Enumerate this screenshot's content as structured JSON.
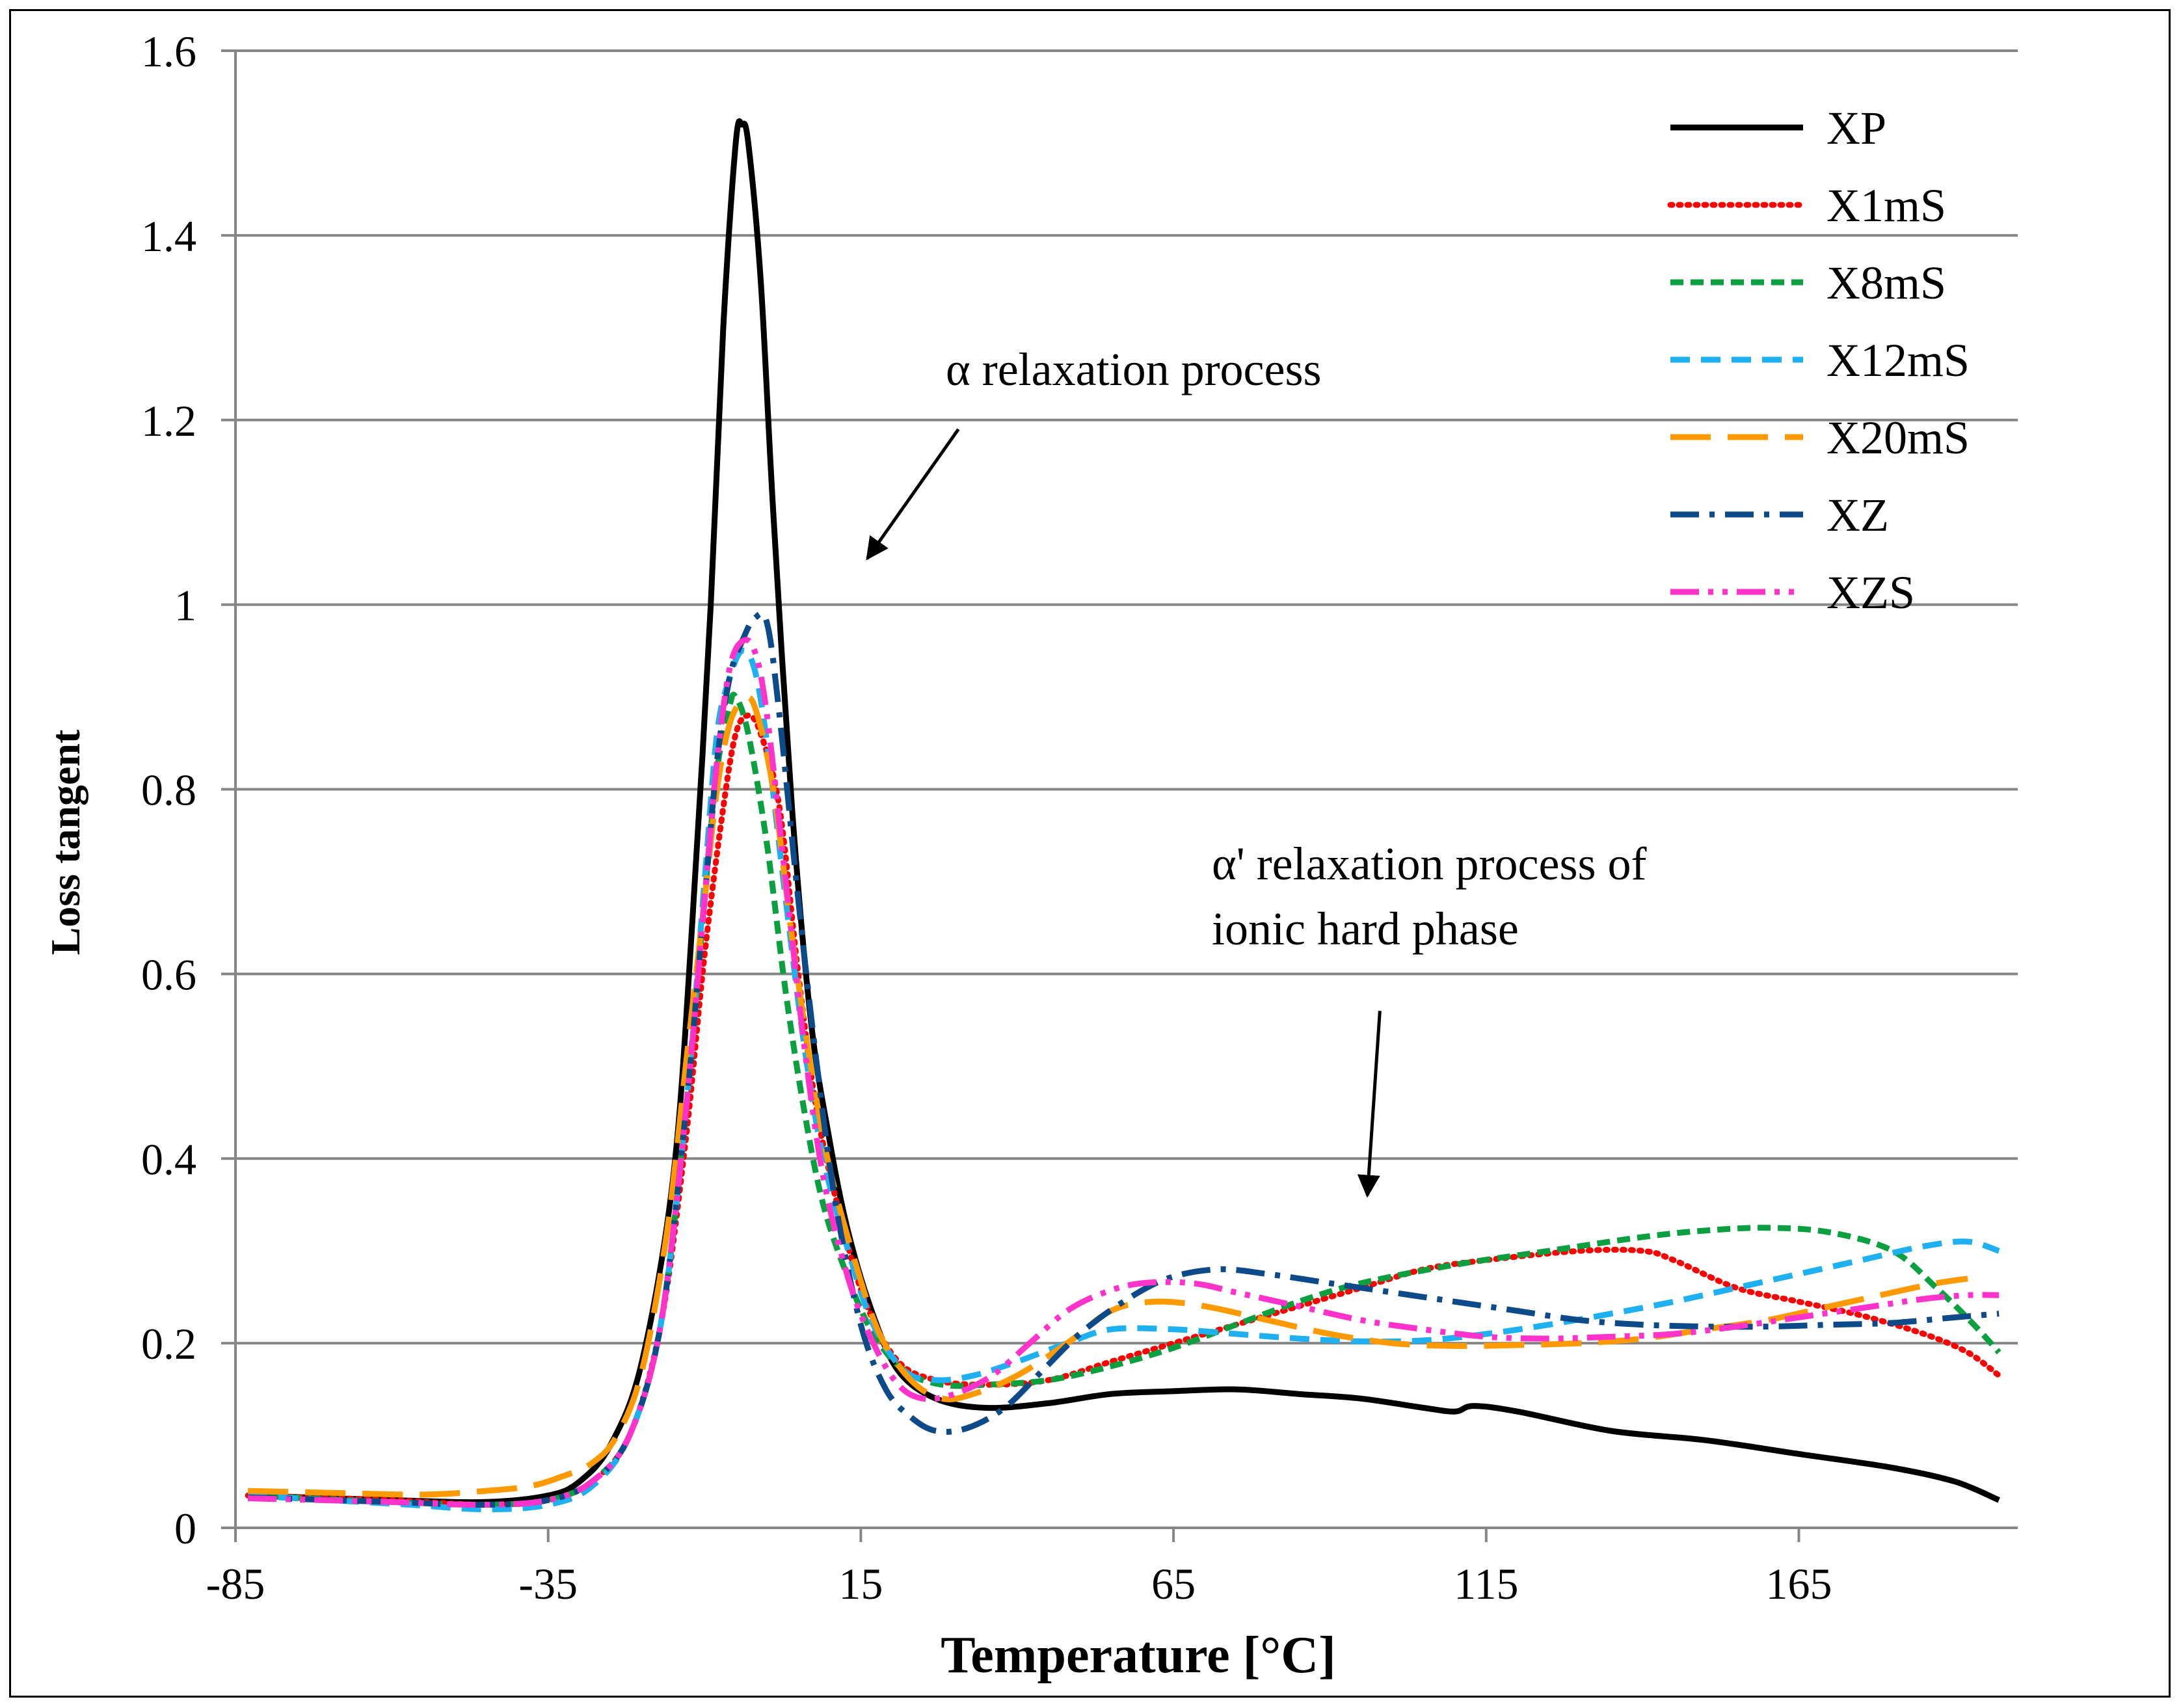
{
  "chart_data": {
    "type": "line",
    "title": "",
    "xlabel": "Temperature [°C]",
    "ylabel": "Loss tangent",
    "xlim": [
      -85,
      200
    ],
    "ylim": [
      0,
      1.6
    ],
    "xticks": [
      -85,
      -35,
      15,
      65,
      115,
      165
    ],
    "xtick_labels": [
      "-85",
      "-35",
      "15",
      "65",
      "115",
      "165"
    ],
    "yticks": [
      0,
      0.2,
      0.4,
      0.6,
      0.8,
      1.0,
      1.2,
      1.4,
      1.6
    ],
    "ytick_labels": [
      "0",
      "0.2",
      "0.4",
      "0.6",
      "0.8",
      "1",
      "1.2",
      "1.4",
      "1.6"
    ],
    "grid": "horizontal",
    "legend_position": "top-right",
    "annotations": [
      {
        "text": "α relaxation process",
        "arrow_from": [
          15,
          1.19
        ],
        "arrow_to": [
          15,
          1.05
        ]
      },
      {
        "text_lines": [
          "α' relaxation process of",
          "ionic hard phase"
        ],
        "arrow_from": [
          98,
          0.56
        ],
        "arrow_to": [
          96,
          0.36
        ]
      }
    ],
    "series": [
      {
        "name": "XP",
        "color": "#000000",
        "dash": "solid",
        "points": [
          [
            -83,
            0.035
          ],
          [
            -60,
            0.03
          ],
          [
            -45,
            0.028
          ],
          [
            -35,
            0.035
          ],
          [
            -30,
            0.05
          ],
          [
            -25,
            0.09
          ],
          [
            -20,
            0.18
          ],
          [
            -15,
            0.38
          ],
          [
            -12,
            0.65
          ],
          [
            -9,
            1.0
          ],
          [
            -7,
            1.3
          ],
          [
            -5,
            1.5
          ],
          [
            -4,
            1.52
          ],
          [
            -3,
            1.5
          ],
          [
            -1,
            1.35
          ],
          [
            1,
            1.1
          ],
          [
            4,
            0.78
          ],
          [
            7,
            0.55
          ],
          [
            10,
            0.42
          ],
          [
            13,
            0.32
          ],
          [
            17,
            0.23
          ],
          [
            21,
            0.17
          ],
          [
            27,
            0.14
          ],
          [
            35,
            0.13
          ],
          [
            45,
            0.135
          ],
          [
            55,
            0.145
          ],
          [
            65,
            0.148
          ],
          [
            75,
            0.15
          ],
          [
            85,
            0.145
          ],
          [
            95,
            0.14
          ],
          [
            105,
            0.13
          ],
          [
            110,
            0.126
          ],
          [
            113,
            0.132
          ],
          [
            120,
            0.126
          ],
          [
            135,
            0.105
          ],
          [
            150,
            0.095
          ],
          [
            165,
            0.08
          ],
          [
            180,
            0.065
          ],
          [
            190,
            0.05
          ],
          [
            197,
            0.03
          ]
        ]
      },
      {
        "name": "X1mS",
        "color": "#ff0000",
        "dash": "dotted",
        "points": [
          [
            -83,
            0.035
          ],
          [
            -60,
            0.03
          ],
          [
            -45,
            0.025
          ],
          [
            -35,
            0.03
          ],
          [
            -28,
            0.05
          ],
          [
            -22,
            0.1
          ],
          [
            -17,
            0.22
          ],
          [
            -13,
            0.42
          ],
          [
            -10,
            0.62
          ],
          [
            -7,
            0.78
          ],
          [
            -5,
            0.86
          ],
          [
            -3,
            0.88
          ],
          [
            -1,
            0.86
          ],
          [
            2,
            0.78
          ],
          [
            5,
            0.6
          ],
          [
            8,
            0.45
          ],
          [
            12,
            0.33
          ],
          [
            16,
            0.24
          ],
          [
            21,
            0.18
          ],
          [
            27,
            0.16
          ],
          [
            35,
            0.155
          ],
          [
            45,
            0.16
          ],
          [
            55,
            0.18
          ],
          [
            65,
            0.2
          ],
          [
            75,
            0.22
          ],
          [
            85,
            0.24
          ],
          [
            95,
            0.26
          ],
          [
            105,
            0.28
          ],
          [
            115,
            0.29
          ],
          [
            130,
            0.3
          ],
          [
            140,
            0.3
          ],
          [
            145,
            0.29
          ],
          [
            155,
            0.26
          ],
          [
            165,
            0.245
          ],
          [
            175,
            0.23
          ],
          [
            185,
            0.21
          ],
          [
            192,
            0.19
          ],
          [
            197,
            0.165
          ]
        ]
      },
      {
        "name": "X8mS",
        "color": "#0aa040",
        "dash": "short-dash",
        "points": [
          [
            -83,
            0.035
          ],
          [
            -60,
            0.028
          ],
          [
            -45,
            0.025
          ],
          [
            -35,
            0.03
          ],
          [
            -28,
            0.05
          ],
          [
            -22,
            0.1
          ],
          [
            -17,
            0.22
          ],
          [
            -13,
            0.45
          ],
          [
            -10,
            0.68
          ],
          [
            -8,
            0.82
          ],
          [
            -6,
            0.89
          ],
          [
            -5,
            0.9
          ],
          [
            -3,
            0.86
          ],
          [
            0,
            0.74
          ],
          [
            3,
            0.58
          ],
          [
            6,
            0.45
          ],
          [
            9,
            0.35
          ],
          [
            13,
            0.27
          ],
          [
            17,
            0.21
          ],
          [
            22,
            0.17
          ],
          [
            28,
            0.155
          ],
          [
            35,
            0.155
          ],
          [
            45,
            0.16
          ],
          [
            55,
            0.175
          ],
          [
            65,
            0.195
          ],
          [
            75,
            0.22
          ],
          [
            85,
            0.245
          ],
          [
            95,
            0.265
          ],
          [
            110,
            0.285
          ],
          [
            125,
            0.3
          ],
          [
            140,
            0.315
          ],
          [
            150,
            0.322
          ],
          [
            160,
            0.325
          ],
          [
            170,
            0.32
          ],
          [
            180,
            0.3
          ],
          [
            187,
            0.26
          ],
          [
            193,
            0.22
          ],
          [
            197,
            0.19
          ]
        ]
      },
      {
        "name": "X12mS",
        "color": "#1eb0f0",
        "dash": "dash",
        "points": [
          [
            -83,
            0.035
          ],
          [
            -70,
            0.03
          ],
          [
            -57,
            0.025
          ],
          [
            -45,
            0.02
          ],
          [
            -35,
            0.025
          ],
          [
            -28,
            0.045
          ],
          [
            -22,
            0.1
          ],
          [
            -17,
            0.22
          ],
          [
            -13,
            0.45
          ],
          [
            -10,
            0.7
          ],
          [
            -8,
            0.86
          ],
          [
            -6,
            0.92
          ],
          [
            -4,
            0.95
          ],
          [
            -2,
            0.93
          ],
          [
            0,
            0.85
          ],
          [
            3,
            0.68
          ],
          [
            6,
            0.52
          ],
          [
            9,
            0.4
          ],
          [
            13,
            0.3
          ],
          [
            17,
            0.22
          ],
          [
            22,
            0.17
          ],
          [
            27,
            0.16
          ],
          [
            33,
            0.165
          ],
          [
            40,
            0.18
          ],
          [
            48,
            0.2
          ],
          [
            55,
            0.215
          ],
          [
            65,
            0.215
          ],
          [
            75,
            0.21
          ],
          [
            85,
            0.205
          ],
          [
            95,
            0.202
          ],
          [
            105,
            0.203
          ],
          [
            115,
            0.21
          ],
          [
            125,
            0.22
          ],
          [
            135,
            0.232
          ],
          [
            145,
            0.245
          ],
          [
            155,
            0.26
          ],
          [
            165,
            0.275
          ],
          [
            175,
            0.29
          ],
          [
            185,
            0.305
          ],
          [
            192,
            0.31
          ],
          [
            197,
            0.3
          ]
        ]
      },
      {
        "name": "X20mS",
        "color": "#ff9900",
        "dash": "long-dash",
        "points": [
          [
            -83,
            0.04
          ],
          [
            -70,
            0.038
          ],
          [
            -55,
            0.036
          ],
          [
            -45,
            0.04
          ],
          [
            -38,
            0.045
          ],
          [
            -33,
            0.055
          ],
          [
            -28,
            0.07
          ],
          [
            -24,
            0.1
          ],
          [
            -20,
            0.17
          ],
          [
            -16,
            0.32
          ],
          [
            -13,
            0.5
          ],
          [
            -10,
            0.68
          ],
          [
            -8,
            0.8
          ],
          [
            -6,
            0.87
          ],
          [
            -4,
            0.895
          ],
          [
            -2,
            0.89
          ],
          [
            1,
            0.8
          ],
          [
            4,
            0.64
          ],
          [
            7,
            0.5
          ],
          [
            10,
            0.39
          ],
          [
            14,
            0.29
          ],
          [
            18,
            0.21
          ],
          [
            23,
            0.16
          ],
          [
            28,
            0.14
          ],
          [
            33,
            0.145
          ],
          [
            40,
            0.165
          ],
          [
            48,
            0.2
          ],
          [
            55,
            0.235
          ],
          [
            62,
            0.245
          ],
          [
            70,
            0.24
          ],
          [
            80,
            0.225
          ],
          [
            90,
            0.21
          ],
          [
            100,
            0.2
          ],
          [
            110,
            0.197
          ],
          [
            120,
            0.198
          ],
          [
            130,
            0.2
          ],
          [
            140,
            0.205
          ],
          [
            150,
            0.215
          ],
          [
            160,
            0.225
          ],
          [
            170,
            0.24
          ],
          [
            180,
            0.255
          ],
          [
            187,
            0.265
          ],
          [
            192,
            0.27
          ]
        ]
      },
      {
        "name": "XZ",
        "color": "#0c4a8a",
        "dash": "dash-dot",
        "points": [
          [
            -83,
            0.033
          ],
          [
            -60,
            0.028
          ],
          [
            -45,
            0.025
          ],
          [
            -35,
            0.03
          ],
          [
            -28,
            0.05
          ],
          [
            -22,
            0.1
          ],
          [
            -17,
            0.22
          ],
          [
            -13,
            0.45
          ],
          [
            -10,
            0.68
          ],
          [
            -8,
            0.83
          ],
          [
            -6,
            0.92
          ],
          [
            -4,
            0.96
          ],
          [
            -2,
            0.985
          ],
          [
            0,
            0.98
          ],
          [
            2,
            0.88
          ],
          [
            5,
            0.68
          ],
          [
            8,
            0.5
          ],
          [
            11,
            0.35
          ],
          [
            15,
            0.22
          ],
          [
            19,
            0.15
          ],
          [
            23,
            0.12
          ],
          [
            27,
            0.105
          ],
          [
            32,
            0.108
          ],
          [
            38,
            0.13
          ],
          [
            44,
            0.17
          ],
          [
            50,
            0.21
          ],
          [
            57,
            0.245
          ],
          [
            64,
            0.27
          ],
          [
            72,
            0.28
          ],
          [
            80,
            0.275
          ],
          [
            90,
            0.265
          ],
          [
            100,
            0.255
          ],
          [
            110,
            0.245
          ],
          [
            120,
            0.235
          ],
          [
            130,
            0.225
          ],
          [
            140,
            0.22
          ],
          [
            150,
            0.218
          ],
          [
            160,
            0.218
          ],
          [
            170,
            0.22
          ],
          [
            180,
            0.222
          ],
          [
            190,
            0.228
          ],
          [
            197,
            0.232
          ]
        ]
      },
      {
        "name": "XZS",
        "color": "#ff33cc",
        "dash": "long-dash-dot-dot",
        "points": [
          [
            -83,
            0.032
          ],
          [
            -60,
            0.028
          ],
          [
            -45,
            0.025
          ],
          [
            -35,
            0.03
          ],
          [
            -28,
            0.05
          ],
          [
            -22,
            0.1
          ],
          [
            -17,
            0.22
          ],
          [
            -13,
            0.45
          ],
          [
            -10,
            0.68
          ],
          [
            -8,
            0.83
          ],
          [
            -6,
            0.93
          ],
          [
            -4,
            0.96
          ],
          [
            -2,
            0.95
          ],
          [
            0,
            0.88
          ],
          [
            3,
            0.7
          ],
          [
            6,
            0.52
          ],
          [
            9,
            0.38
          ],
          [
            13,
            0.27
          ],
          [
            17,
            0.2
          ],
          [
            21,
            0.155
          ],
          [
            25,
            0.14
          ],
          [
            30,
            0.145
          ],
          [
            36,
            0.165
          ],
          [
            42,
            0.2
          ],
          [
            48,
            0.235
          ],
          [
            54,
            0.255
          ],
          [
            60,
            0.265
          ],
          [
            68,
            0.265
          ],
          [
            75,
            0.255
          ],
          [
            85,
            0.24
          ],
          [
            95,
            0.225
          ],
          [
            105,
            0.215
          ],
          [
            115,
            0.207
          ],
          [
            125,
            0.205
          ],
          [
            135,
            0.207
          ],
          [
            145,
            0.21
          ],
          [
            155,
            0.218
          ],
          [
            165,
            0.228
          ],
          [
            175,
            0.238
          ],
          [
            185,
            0.248
          ],
          [
            192,
            0.252
          ],
          [
            197,
            0.252
          ]
        ]
      }
    ]
  }
}
